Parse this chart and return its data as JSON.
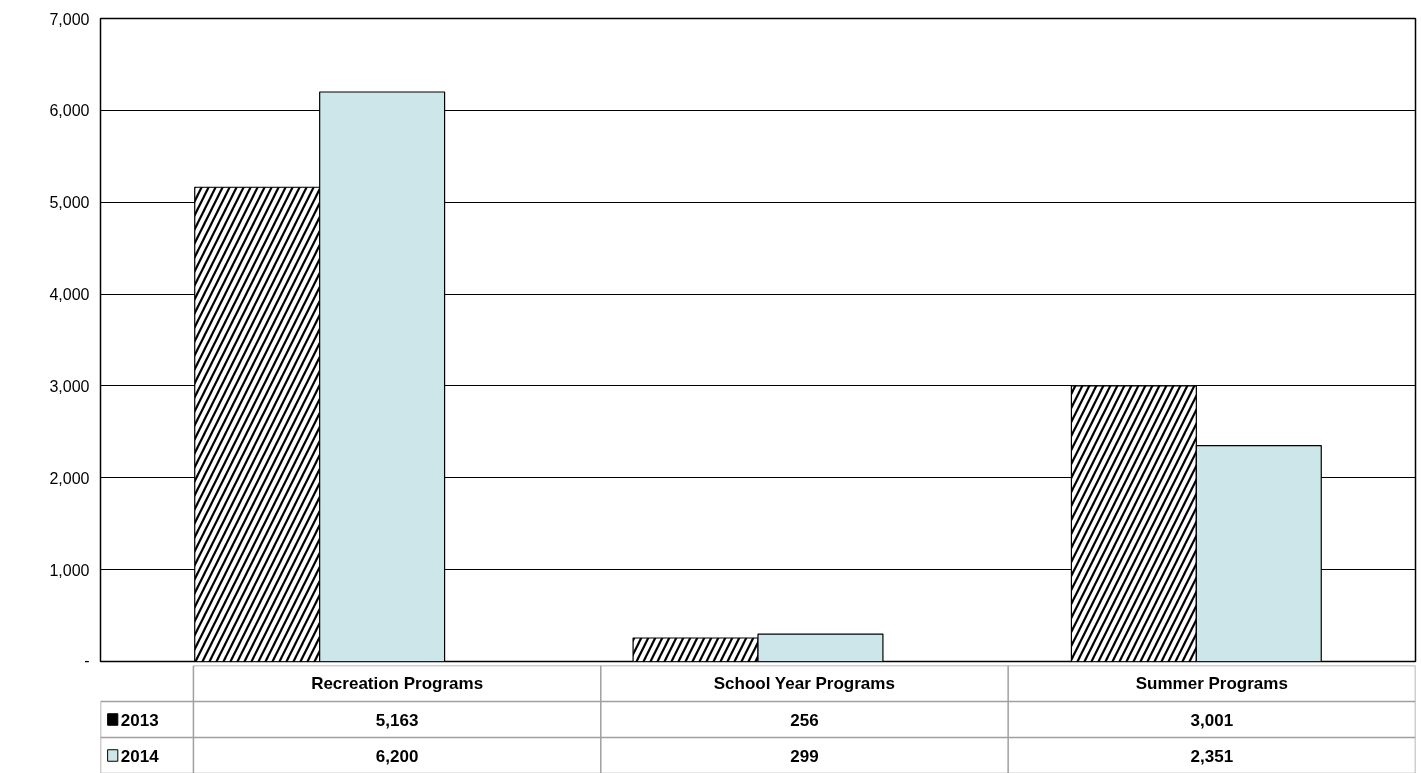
{
  "chart_data": {
    "type": "bar",
    "categories": [
      "Recreation Programs",
      "School Year Programs",
      "Summer Programs"
    ],
    "series": [
      {
        "name": "2013",
        "color": "#000000",
        "values": [
          5163,
          256,
          3001
        ],
        "value_labels": [
          "5,163",
          "256",
          "3,001"
        ]
      },
      {
        "name": "2014",
        "color": "#cde6ea",
        "values": [
          6200,
          299,
          2351
        ],
        "value_labels": [
          "6,200",
          "299",
          "2,351"
        ]
      }
    ],
    "ylim": [
      0,
      7000
    ],
    "yticks": [
      {
        "value": 0,
        "label": "-"
      },
      {
        "value": 1000,
        "label": "1,000"
      },
      {
        "value": 2000,
        "label": "2,000"
      },
      {
        "value": 3000,
        "label": "3,000"
      },
      {
        "value": 4000,
        "label": "4,000"
      },
      {
        "value": 5000,
        "label": "5,000"
      },
      {
        "value": 6000,
        "label": "6,000"
      },
      {
        "value": 7000,
        "label": "7,000"
      }
    ],
    "grid": "y",
    "legend": "bottom"
  }
}
